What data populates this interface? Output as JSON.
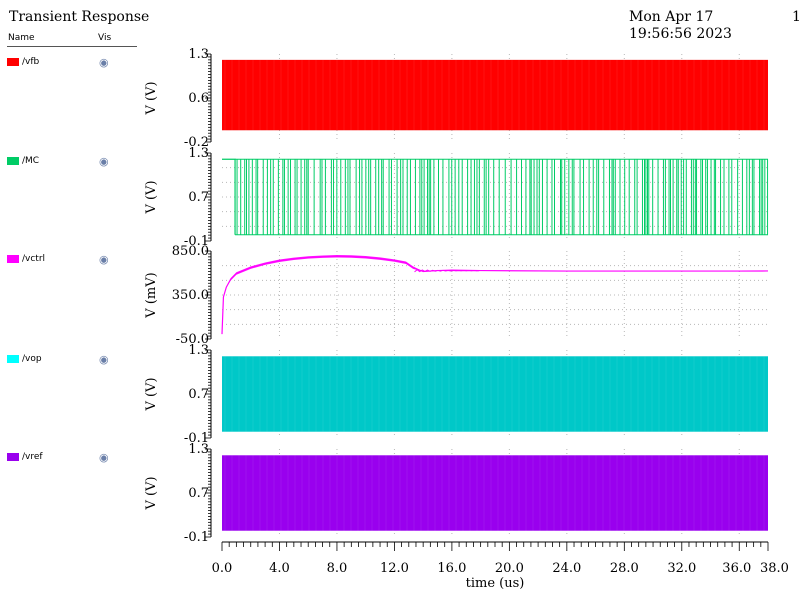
{
  "header": {
    "title": "Transient Response",
    "date": "Mon Apr 17 19:56:56 2023",
    "page": "1"
  },
  "legend": {
    "name_header": "Name",
    "vis_header": "Vis",
    "items": [
      {
        "name": "/vfb",
        "color": "#ff0000"
      },
      {
        "name": "/MC",
        "color": "#00cc66"
      },
      {
        "name": "/vctrl",
        "color": "#ff00ff"
      },
      {
        "name": "/vop",
        "color": "#00ffff"
      },
      {
        "name": "/vref",
        "color": "#9900ee"
      }
    ]
  },
  "chart_data": {
    "type": "line",
    "xlabel": "time (us)",
    "xlim": [
      0.0,
      38.0
    ],
    "x_ticks": [
      "0.0",
      "4.0",
      "8.0",
      "12.0",
      "16.0",
      "20.0",
      "24.0",
      "28.0",
      "32.0",
      "36.0",
      "38.0"
    ],
    "grid": true,
    "panels": [
      {
        "signal": "/vfb",
        "color": "#ff0000",
        "ylabel": "V (V)",
        "ylim": [
          -0.2,
          1.3
        ],
        "y_ticks": [
          "1.3",
          "0.6",
          "-0.2"
        ],
        "kind": "square-wave",
        "low": 0.0,
        "high": 1.2,
        "start": 0.0
      },
      {
        "signal": "/MC",
        "color": "#00cc66",
        "ylabel": "V (V)",
        "ylim": [
          -0.1,
          1.3
        ],
        "y_ticks": [
          "1.3",
          "0.7",
          "-0.1"
        ],
        "kind": "digital",
        "low": 0.0,
        "high": 1.2,
        "start": 0.7
      },
      {
        "signal": "/vctrl",
        "color": "#ff00ff",
        "ylabel": "V (mV)",
        "ylim": [
          -50.0,
          850.0
        ],
        "y_ticks": [
          "850.0",
          "350.0",
          "-50.0"
        ],
        "kind": "analog",
        "points": [
          [
            0.0,
            0
          ],
          [
            0.1,
            380
          ],
          [
            0.3,
            480
          ],
          [
            0.6,
            560
          ],
          [
            1.0,
            620
          ],
          [
            2.0,
            680
          ],
          [
            3.0,
            720
          ],
          [
            4.0,
            750
          ],
          [
            5.0,
            770
          ],
          [
            6.0,
            784
          ],
          [
            7.0,
            792
          ],
          [
            8.0,
            796
          ],
          [
            9.0,
            794
          ],
          [
            10.0,
            786
          ],
          [
            11.0,
            772
          ],
          [
            12.0,
            752
          ],
          [
            12.8,
            730
          ],
          [
            13.3,
            680
          ],
          [
            14.0,
            640
          ],
          [
            15.0,
            650
          ],
          [
            16.0,
            655
          ],
          [
            18.0,
            650
          ],
          [
            20.0,
            648
          ],
          [
            24.0,
            645
          ],
          [
            28.0,
            645
          ],
          [
            32.0,
            645
          ],
          [
            36.0,
            645
          ],
          [
            38.0,
            646
          ]
        ],
        "ripple_mV": 25
      },
      {
        "signal": "/vop",
        "color": "#00c8c8",
        "ylabel": "V (V)",
        "ylim": [
          -0.1,
          1.3
        ],
        "y_ticks": [
          "1.3",
          "0.7",
          "-0.1"
        ],
        "kind": "square-wave",
        "low": 0.0,
        "high": 1.2,
        "start": 0.0
      },
      {
        "signal": "/vref",
        "color": "#9900ee",
        "ylabel": "V (V)",
        "ylim": [
          -0.1,
          1.3
        ],
        "y_ticks": [
          "1.3",
          "0.7",
          "-0.1"
        ],
        "kind": "square-wave",
        "low": 0.0,
        "high": 1.2,
        "start": 0.0
      }
    ]
  }
}
